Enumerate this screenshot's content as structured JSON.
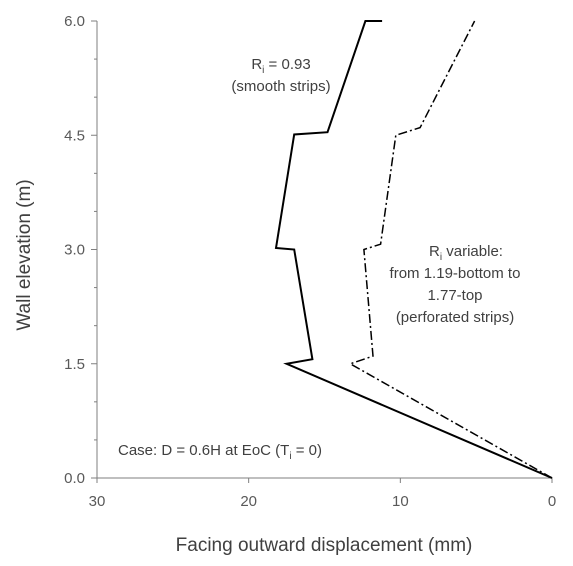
{
  "chart_data": {
    "type": "line",
    "xlabel": "Facing outward displacement (mm)",
    "ylabel": "Wall elevation (m)",
    "xlim": [
      30,
      0
    ],
    "ylim": [
      0,
      6
    ],
    "x_reversed": true,
    "x_ticks": [
      "30",
      "20",
      "10",
      "0"
    ],
    "y_ticks": [
      "0.0",
      "1.5",
      "3.0",
      "4.5",
      "6.0"
    ],
    "grid": false,
    "legend": "none",
    "series": [
      {
        "style": "solid",
        "color": "#000000",
        "points": [
          [
            0,
            0
          ],
          [
            17.5,
            1.5
          ],
          [
            15.8,
            1.56
          ],
          [
            17,
            3.0
          ],
          [
            18.2,
            3.02
          ],
          [
            17,
            4.51
          ],
          [
            14.8,
            4.54
          ],
          [
            12.3,
            6.0
          ],
          [
            11.2,
            6.0
          ]
        ]
      },
      {
        "style": "dash-dot",
        "color": "#000000",
        "points": [
          [
            0,
            0
          ],
          [
            13.3,
            1.5
          ],
          [
            11.8,
            1.6
          ],
          [
            12.4,
            3.0
          ],
          [
            11.3,
            3.07
          ],
          [
            10.3,
            4.5
          ],
          [
            8.7,
            4.6
          ],
          [
            5.1,
            6.0
          ]
        ]
      }
    ],
    "annotations": {
      "smooth": {
        "r_main": "R",
        "r_sub": "i",
        "r_value": " = 0.93",
        "line2": "(smooth strips)"
      },
      "perforated": {
        "r_main": "R",
        "r_sub": "i",
        "r_value": " variable:",
        "line2": "from 1.19-bottom to",
        "line3": "1.77-top",
        "line4": "(perforated strips)"
      },
      "case": {
        "prefix": "Case: D = 0.6H at EoC (T",
        "sub": "i",
        "suffix": " = 0)"
      }
    }
  }
}
